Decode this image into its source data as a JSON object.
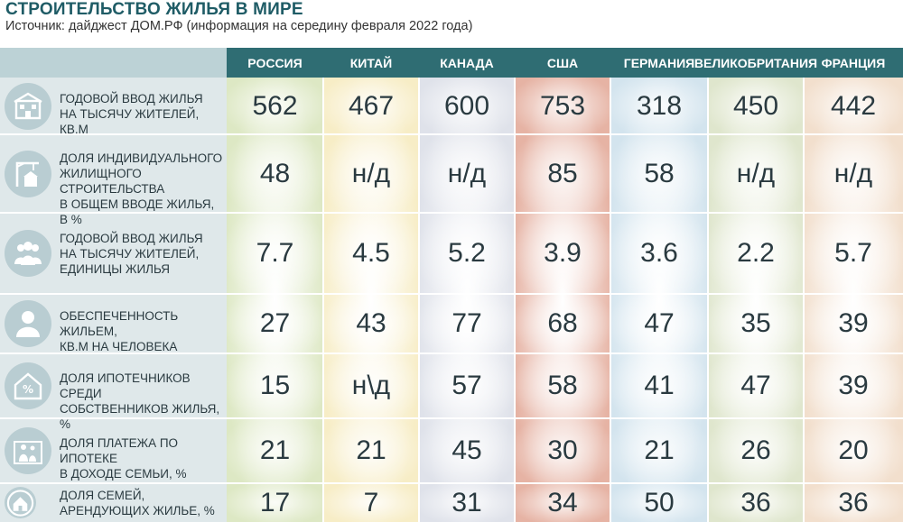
{
  "header": {
    "title": "СТРОИТЕЛЬСТВО ЖИЛЬЯ В МИРЕ",
    "subtitle": "Источник: дайджест ДОМ.РФ (информация на середину февраля 2022 года)"
  },
  "colors": {
    "header_bg": "#2f6d73",
    "label_bg": "#dfe8ea",
    "icon_bg": "#b9cdd2",
    "columns": [
      "#dde8c4",
      "#f7edc6",
      "#dfe2ea",
      "#e6b3a4",
      "#d3e4ee",
      "#dfe6cd",
      "#f2dfcd"
    ]
  },
  "chart_data": {
    "type": "table",
    "title": "СТРОИТЕЛЬСТВО ЖИЛЬЯ В МИРЕ",
    "columns": [
      "РОССИЯ",
      "КИТАЙ",
      "КАНАДА",
      "США",
      "ГЕРМАНИЯ",
      "ВЕЛИКОБРИТАНИЯ",
      "ФРАНЦИЯ"
    ],
    "rows": [
      {
        "icon": "building-icon",
        "label": "ГОДОВОЙ ВВОД ЖИЛЬЯ\nНА ТЫСЯЧУ ЖИТЕЛЕЙ, КВ.М",
        "values": [
          "562",
          "467",
          "600",
          "753",
          "318",
          "450",
          "442"
        ]
      },
      {
        "icon": "crane-icon",
        "label": "ДОЛЯ ИНДИВИДУАЛЬНОГО\nЖИЛИЩНОГО СТРОИТЕЛЬСТВА\nВ ОБЩЕМ ВВОДЕ ЖИЛЬЯ, В %",
        "values": [
          "48",
          "н/д",
          "н/д",
          "85",
          "58",
          "н/д",
          "н/д"
        ]
      },
      {
        "icon": "people-group-icon",
        "label": "ГОДОВОЙ ВВОД ЖИЛЬЯ\nНА ТЫСЯЧУ ЖИТЕЛЕЙ,\nЕДИНИЦЫ ЖИЛЬЯ",
        "values": [
          "7.7",
          "4.5",
          "5.2",
          "3.9",
          "3.6",
          "2.2",
          "5.7"
        ]
      },
      {
        "icon": "person-icon",
        "label": "ОБЕСПЕЧЕННОСТЬ ЖИЛЬЕМ,\nКВ.М НА ЧЕЛОВЕКА",
        "values": [
          "27",
          "43",
          "77",
          "68",
          "47",
          "35",
          "39"
        ]
      },
      {
        "icon": "mortgage-house-icon",
        "label": "ДОЛЯ ИПОТЕЧНИКОВ СРЕДИ\nСОБСТВЕННИКОВ ЖИЛЬЯ, %",
        "values": [
          "15",
          "н\\д",
          "57",
          "58",
          "41",
          "47",
          "39"
        ]
      },
      {
        "icon": "family-icon",
        "label": "ДОЛЯ ПЛАТЕЖА ПО ИПОТЕКЕ\nВ ДОХОДЕ СЕМЬИ, %",
        "values": [
          "21",
          "21",
          "45",
          "30",
          "21",
          "26",
          "20"
        ]
      },
      {
        "icon": "rent-house-icon",
        "label": "ДОЛЯ СЕМЕЙ,\nАРЕНДУЮЩИХ ЖИЛЬЕ, %",
        "values": [
          "17",
          "7",
          "31",
          "34",
          "50",
          "36",
          "36"
        ]
      }
    ]
  }
}
